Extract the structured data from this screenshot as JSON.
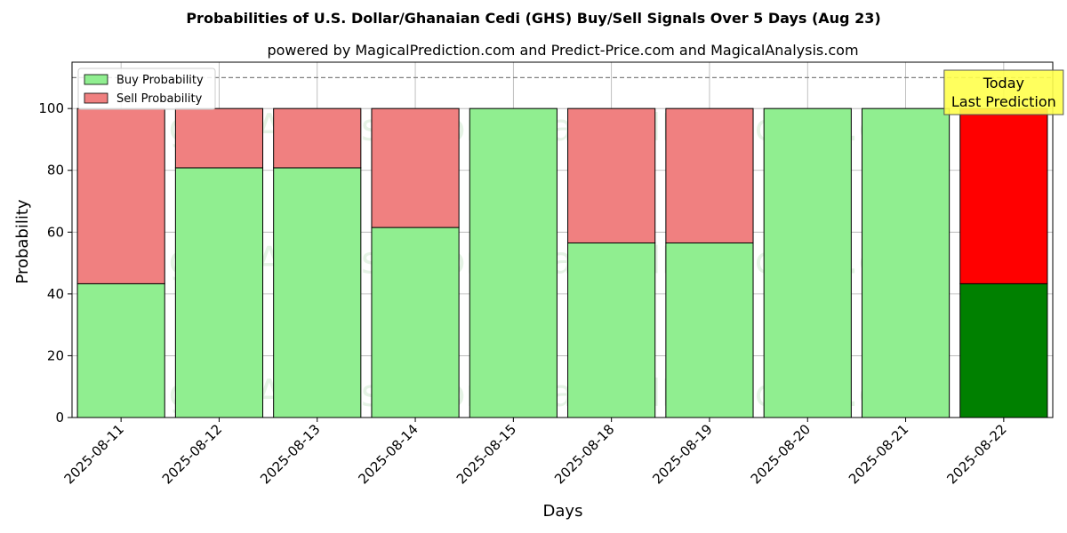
{
  "chart_data": {
    "type": "bar",
    "stacked": true,
    "title": "Probabilities of U.S. Dollar/Ghanaian Cedi (GHS) Buy/Sell Signals Over 5 Days (Aug 23)",
    "subtitle": "powered by MagicalPrediction.com and Predict-Price.com and MagicalAnalysis.com",
    "xlabel": "Days",
    "ylabel": "Probability",
    "ylim": [
      0,
      115
    ],
    "yticks": [
      0,
      20,
      40,
      60,
      80,
      100
    ],
    "reference_line": 110,
    "grid": true,
    "legend_position": "top-left",
    "categories": [
      "2025-08-11",
      "2025-08-12",
      "2025-08-13",
      "2025-08-14",
      "2025-08-15",
      "2025-08-18",
      "2025-08-19",
      "2025-08-20",
      "2025-08-21",
      "2025-08-22"
    ],
    "series": [
      {
        "name": "Buy Probability",
        "color": "#90ee90",
        "highlight_color": "#008000",
        "values": [
          43.3,
          80.8,
          80.8,
          61.5,
          100,
          56.5,
          56.5,
          100,
          100,
          43.3
        ]
      },
      {
        "name": "Sell Probability",
        "color": "#f08080",
        "highlight_color": "#ff0000",
        "values": [
          56.7,
          19.2,
          19.2,
          38.5,
          0,
          43.5,
          43.5,
          0,
          0,
          56.7
        ]
      }
    ],
    "annotation": {
      "lines": [
        "Today",
        "Last Prediction"
      ],
      "category": "2025-08-22",
      "background": "#ffff4d"
    },
    "watermarks": [
      "MagicalAnalysis.com",
      "MagicalPrediction.com"
    ]
  }
}
